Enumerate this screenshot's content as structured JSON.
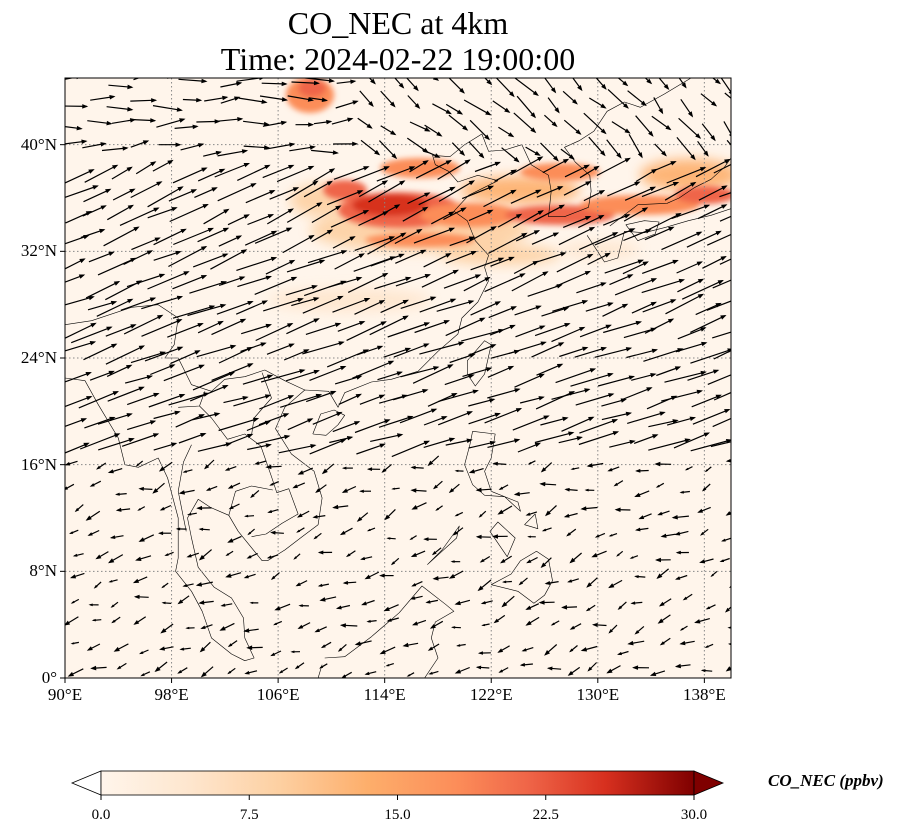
{
  "title": {
    "line1": "CO_NEC at 4km",
    "line2": "Time: 2024-02-22 19:00:00"
  },
  "map": {
    "lon_range": [
      90,
      140
    ],
    "lat_range": [
      0,
      45
    ],
    "gridlines": "dotted",
    "lat_ticks": [
      {
        "value": 0,
        "label": "0°"
      },
      {
        "value": 8,
        "label": "8°N"
      },
      {
        "value": 16,
        "label": "16°N"
      },
      {
        "value": 24,
        "label": "24°N"
      },
      {
        "value": 32,
        "label": "32°N"
      },
      {
        "value": 40,
        "label": "40°N"
      }
    ],
    "lon_ticks": [
      {
        "value": 90,
        "label": "90°E"
      },
      {
        "value": 98,
        "label": "98°E"
      },
      {
        "value": 106,
        "label": "106°E"
      },
      {
        "value": 114,
        "label": "114°E"
      },
      {
        "value": 122,
        "label": "122°E"
      },
      {
        "value": 130,
        "label": "130°E"
      },
      {
        "value": 138,
        "label": "138°E"
      }
    ],
    "background_color": "#fff5eb",
    "overlay": "wind vectors"
  },
  "colorbar": {
    "label": "CO_NEC (ppbv)",
    "ticks": [
      "0.0",
      "7.5",
      "15.0",
      "22.5",
      "30.0"
    ],
    "range": [
      0,
      30
    ],
    "colormap": "OrRd",
    "extend": "both"
  }
}
